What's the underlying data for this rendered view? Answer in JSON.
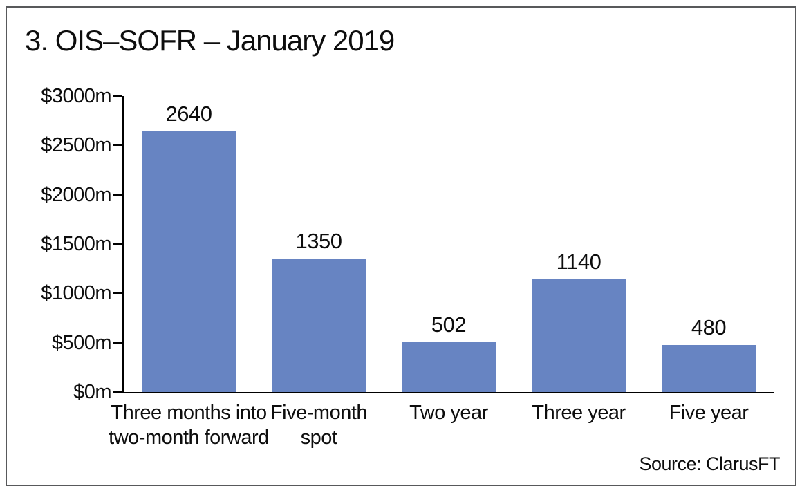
{
  "title": "3. OIS–SOFR – January 2019",
  "source": "Source: ClarusFT",
  "colors": {
    "bar": "#6784c2",
    "axis": "#000000",
    "frame_border": "#58595b",
    "background": "#ffffff",
    "text": "#0d0d0d"
  },
  "chart_data": {
    "type": "bar",
    "title": "3. OIS–SOFR – January 2019",
    "categories": [
      "Three months into\ntwo-month forward",
      "Five-month\nspot",
      "Two year",
      "Three year",
      "Five year"
    ],
    "values": [
      2640,
      1350,
      502,
      1140,
      480
    ],
    "data_labels": [
      "2640",
      "1350",
      "502",
      "1140",
      "480"
    ],
    "xlabel": "",
    "ylabel": "",
    "ylim": [
      0,
      3000
    ],
    "yticks": [
      0,
      500,
      1000,
      1500,
      2000,
      2500,
      3000
    ],
    "ytick_labels": [
      "$0m",
      "$500m",
      "$1000m",
      "$1500m",
      "$2000m",
      "$2500m",
      "$3000m"
    ],
    "grid": false,
    "legend": false,
    "source": "Source: ClarusFT"
  }
}
